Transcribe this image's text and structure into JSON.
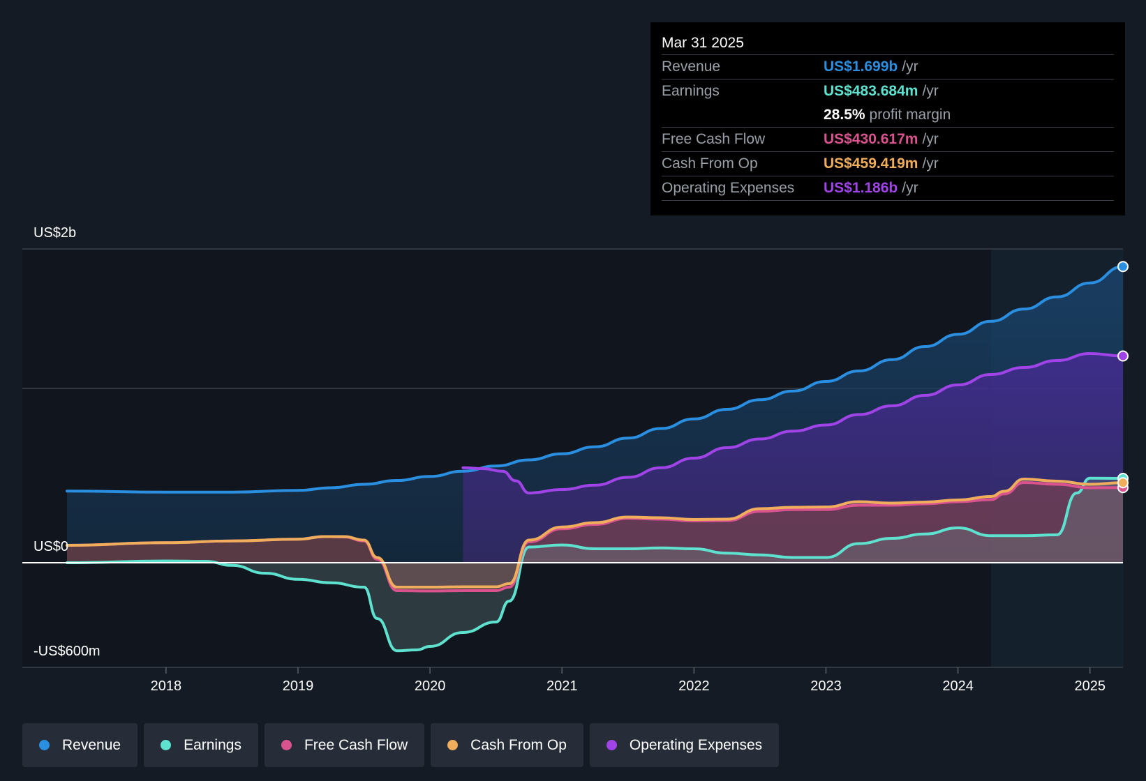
{
  "tooltip": {
    "date": "Mar 31 2025",
    "rows": [
      {
        "label": "Revenue",
        "value": "US$1.699b",
        "unit": "/yr",
        "color": "#2a8fe0"
      },
      {
        "label": "Earnings",
        "value": "US$483.684m",
        "unit": "/yr",
        "color": "#5ee2cf"
      },
      {
        "label": "",
        "value": "28.5%",
        "unit": "profit margin",
        "color": "#ffffff"
      },
      {
        "label": "Free Cash Flow",
        "value": "US$430.617m",
        "unit": "/yr",
        "color": "#d9538f"
      },
      {
        "label": "Cash From Op",
        "value": "US$459.419m",
        "unit": "/yr",
        "color": "#f0ad5b"
      },
      {
        "label": "Operating Expenses",
        "value": "US$1.186b",
        "unit": "/yr",
        "color": "#a044e8"
      }
    ]
  },
  "legend": [
    {
      "label": "Revenue",
      "color": "#2a8fe0"
    },
    {
      "label": "Earnings",
      "color": "#5ee2cf"
    },
    {
      "label": "Free Cash Flow",
      "color": "#d9538f"
    },
    {
      "label": "Cash From Op",
      "color": "#f0ad5b"
    },
    {
      "label": "Operating Expenses",
      "color": "#a044e8"
    }
  ],
  "chart_data": {
    "type": "line",
    "ylabels": {
      "top": "US$2b",
      "zero": "US$0",
      "bottom": "-US$600m"
    },
    "ylim": [
      -600,
      1800
    ],
    "xlim": [
      2017.25,
      2025.25
    ],
    "xticks": [
      "2018",
      "2019",
      "2020",
      "2021",
      "2022",
      "2023",
      "2024",
      "2025"
    ],
    "grid": true,
    "series": [
      {
        "name": "Revenue",
        "color": "#2a8fe0",
        "x": [
          2017.25,
          2018.0,
          2018.5,
          2019.0,
          2019.25,
          2019.5,
          2019.75,
          2020.0,
          2020.25,
          2020.5,
          2020.75,
          2021.0,
          2021.25,
          2021.5,
          2021.75,
          2022.0,
          2022.25,
          2022.5,
          2022.75,
          2023.0,
          2023.25,
          2023.5,
          2023.75,
          2024.0,
          2024.25,
          2024.5,
          2024.75,
          2025.0,
          2025.25
        ],
        "y": [
          411,
          405,
          405,
          415,
          430,
          450,
          472,
          495,
          525,
          555,
          590,
          625,
          665,
          715,
          770,
          825,
          880,
          935,
          985,
          1040,
          1100,
          1165,
          1240,
          1310,
          1385,
          1455,
          1525,
          1605,
          1699
        ]
      },
      {
        "name": "Operating Expenses",
        "color": "#a044e8",
        "x": [
          2020.25,
          2020.4,
          2020.55,
          2020.65,
          2020.75,
          2021.0,
          2021.25,
          2021.5,
          2021.75,
          2022.0,
          2022.25,
          2022.5,
          2022.75,
          2023.0,
          2023.25,
          2023.5,
          2023.75,
          2024.0,
          2024.25,
          2024.5,
          2024.75,
          2025.0,
          2025.25
        ],
        "y": [
          545,
          540,
          525,
          470,
          400,
          420,
          445,
          490,
          545,
          600,
          660,
          710,
          755,
          790,
          850,
          900,
          960,
          1020,
          1080,
          1120,
          1160,
          1200,
          1186
        ]
      },
      {
        "name": "Cash From Op",
        "color": "#f0ad5b",
        "x": [
          2017.25,
          2018.0,
          2018.5,
          2019.0,
          2019.2,
          2019.35,
          2019.5,
          2019.6,
          2019.75,
          2020.0,
          2020.25,
          2020.5,
          2020.6,
          2020.75,
          2021.0,
          2021.25,
          2021.5,
          2021.75,
          2022.0,
          2022.25,
          2022.5,
          2022.75,
          2023.0,
          2023.25,
          2023.5,
          2023.75,
          2024.0,
          2024.25,
          2024.35,
          2024.5,
          2024.75,
          2025.0,
          2025.25
        ],
        "y": [
          100,
          115,
          125,
          135,
          150,
          150,
          130,
          30,
          -140,
          -140,
          -138,
          -138,
          -120,
          130,
          205,
          230,
          262,
          258,
          248,
          250,
          310,
          318,
          320,
          350,
          342,
          348,
          360,
          380,
          410,
          480,
          468,
          450,
          459
        ]
      },
      {
        "name": "Free Cash Flow",
        "color": "#d9538f",
        "x": [
          2017.25,
          2018.0,
          2018.5,
          2019.0,
          2019.2,
          2019.35,
          2019.5,
          2019.6,
          2019.75,
          2020.0,
          2020.25,
          2020.5,
          2020.6,
          2020.75,
          2021.0,
          2021.25,
          2021.5,
          2021.75,
          2022.0,
          2022.25,
          2022.5,
          2022.75,
          2023.0,
          2023.25,
          2023.5,
          2023.75,
          2024.0,
          2024.25,
          2024.35,
          2024.5,
          2024.75,
          2025.0,
          2025.25
        ],
        "y": [
          100,
          115,
          125,
          135,
          150,
          148,
          125,
          20,
          -160,
          -162,
          -160,
          -160,
          -140,
          120,
          195,
          220,
          255,
          250,
          240,
          242,
          295,
          305,
          305,
          330,
          330,
          338,
          350,
          362,
          395,
          460,
          450,
          430,
          431
        ]
      },
      {
        "name": "Earnings",
        "color": "#5ee2cf",
        "x": [
          2017.25,
          2018.0,
          2018.3,
          2018.5,
          2018.75,
          2019.0,
          2019.25,
          2019.5,
          2019.6,
          2019.75,
          2019.9,
          2020.0,
          2020.25,
          2020.5,
          2020.6,
          2020.75,
          2021.0,
          2021.25,
          2021.5,
          2021.75,
          2022.0,
          2022.25,
          2022.5,
          2022.75,
          2023.0,
          2023.25,
          2023.5,
          2023.75,
          2024.0,
          2024.25,
          2024.5,
          2024.75,
          2024.9,
          2025.0,
          2025.25
        ],
        "y": [
          0,
          10,
          8,
          -15,
          -60,
          -95,
          -115,
          -140,
          -320,
          -505,
          -500,
          -480,
          -400,
          -340,
          -220,
          90,
          102,
          80,
          80,
          85,
          80,
          55,
          45,
          30,
          30,
          110,
          140,
          165,
          200,
          155,
          155,
          160,
          400,
          485,
          484
        ]
      }
    ]
  }
}
